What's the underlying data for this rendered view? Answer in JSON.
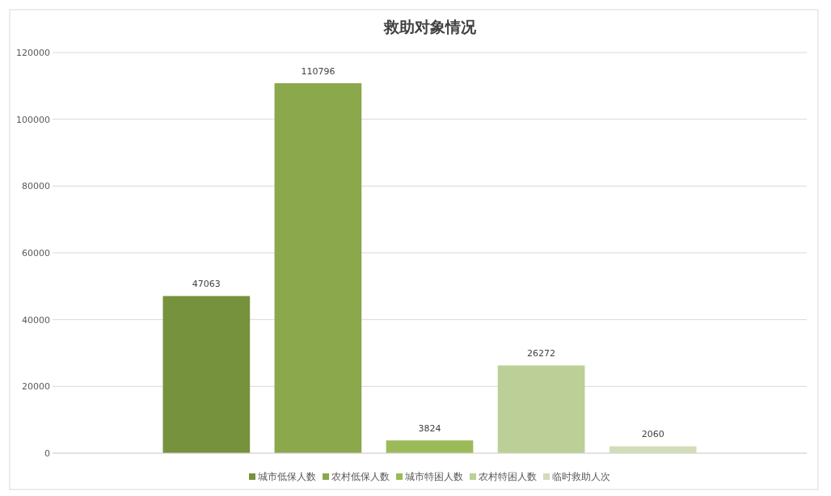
{
  "chart_data": {
    "type": "bar",
    "title": "救助对象情况",
    "categories": [
      null
    ],
    "series": [
      {
        "name": "城市低保人数",
        "color": "#76923c",
        "values": [
          47063
        ]
      },
      {
        "name": "农村低保人数",
        "color": "#8ba84d",
        "values": [
          110796
        ]
      },
      {
        "name": "城市特困人数",
        "color": "#9bbb59",
        "values": [
          3824
        ]
      },
      {
        "name": "农村特困人数",
        "color": "#bbcf96",
        "values": [
          26272
        ]
      },
      {
        "name": "临时救助人次",
        "color": "#d2dcb8",
        "values": [
          2060
        ]
      }
    ],
    "ylim": [
      0,
      120000
    ],
    "yticks": [
      0,
      20000,
      40000,
      60000,
      80000,
      100000,
      120000
    ],
    "grid": "y",
    "legend": "bottom",
    "data_labels": true
  }
}
